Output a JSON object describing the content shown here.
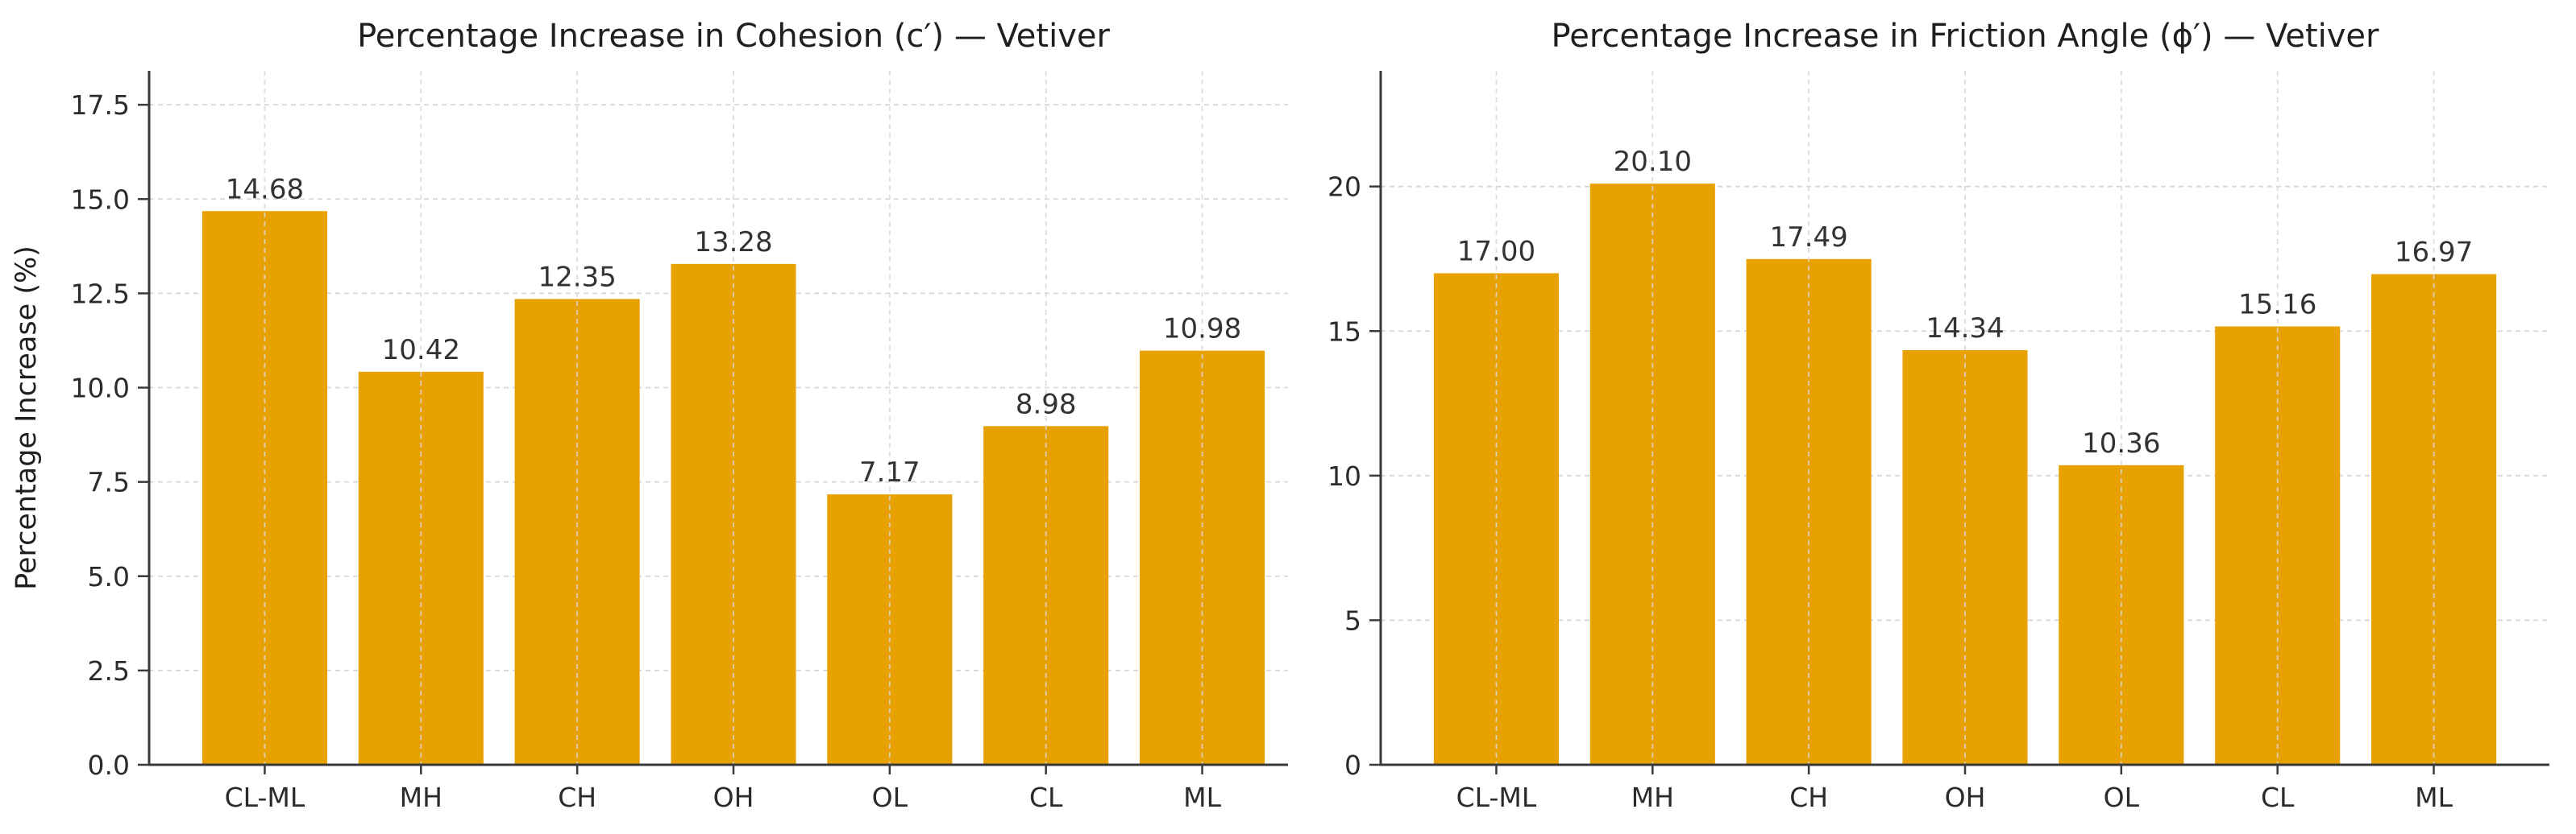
{
  "figure": {
    "background_color": "#ffffff",
    "bar_color": "#E8A102",
    "grid_color": "#d7d7d7",
    "spine_color": "#3a3a3a",
    "text_color": "#262626"
  },
  "chart_data": [
    {
      "type": "bar",
      "title": "Percentage Increase in Cohesion (c′) — Vetiver",
      "xlabel": "",
      "ylabel": "Percentage Increase (%)",
      "categories": [
        "CL-ML",
        "MH",
        "CH",
        "OH",
        "OL",
        "CL",
        "ML"
      ],
      "values": [
        14.68,
        10.42,
        12.35,
        13.28,
        7.17,
        8.98,
        10.98
      ],
      "value_labels": [
        "14.68",
        "10.42",
        "12.35",
        "13.28",
        "7.17",
        "8.98",
        "10.98"
      ],
      "yticks": [
        0.0,
        2.5,
        5.0,
        7.5,
        10.0,
        12.5,
        15.0,
        17.5
      ],
      "ytick_labels": [
        "0.0",
        "2.5",
        "5.0",
        "7.5",
        "10.0",
        "12.5",
        "15.0",
        "17.5"
      ],
      "ylim": [
        0,
        18.4
      ],
      "grid": "both-dashed",
      "legend": "none",
      "bar_color": "#E8A102"
    },
    {
      "type": "bar",
      "title": "Percentage Increase in Friction Angle (ϕ′) — Vetiver",
      "xlabel": "",
      "ylabel": "",
      "categories": [
        "CL-ML",
        "MH",
        "CH",
        "OH",
        "OL",
        "CL",
        "ML"
      ],
      "values": [
        17.0,
        20.1,
        17.49,
        14.34,
        10.36,
        15.16,
        16.97
      ],
      "value_labels": [
        "17.00",
        "20.10",
        "17.49",
        "14.34",
        "10.36",
        "15.16",
        "16.97"
      ],
      "yticks": [
        0,
        5,
        10,
        15,
        20
      ],
      "ytick_labels": [
        "0",
        "5",
        "10",
        "15",
        "20"
      ],
      "ylim": [
        0,
        24.0
      ],
      "grid": "both-dashed",
      "legend": "none",
      "bar_color": "#E8A102"
    }
  ]
}
